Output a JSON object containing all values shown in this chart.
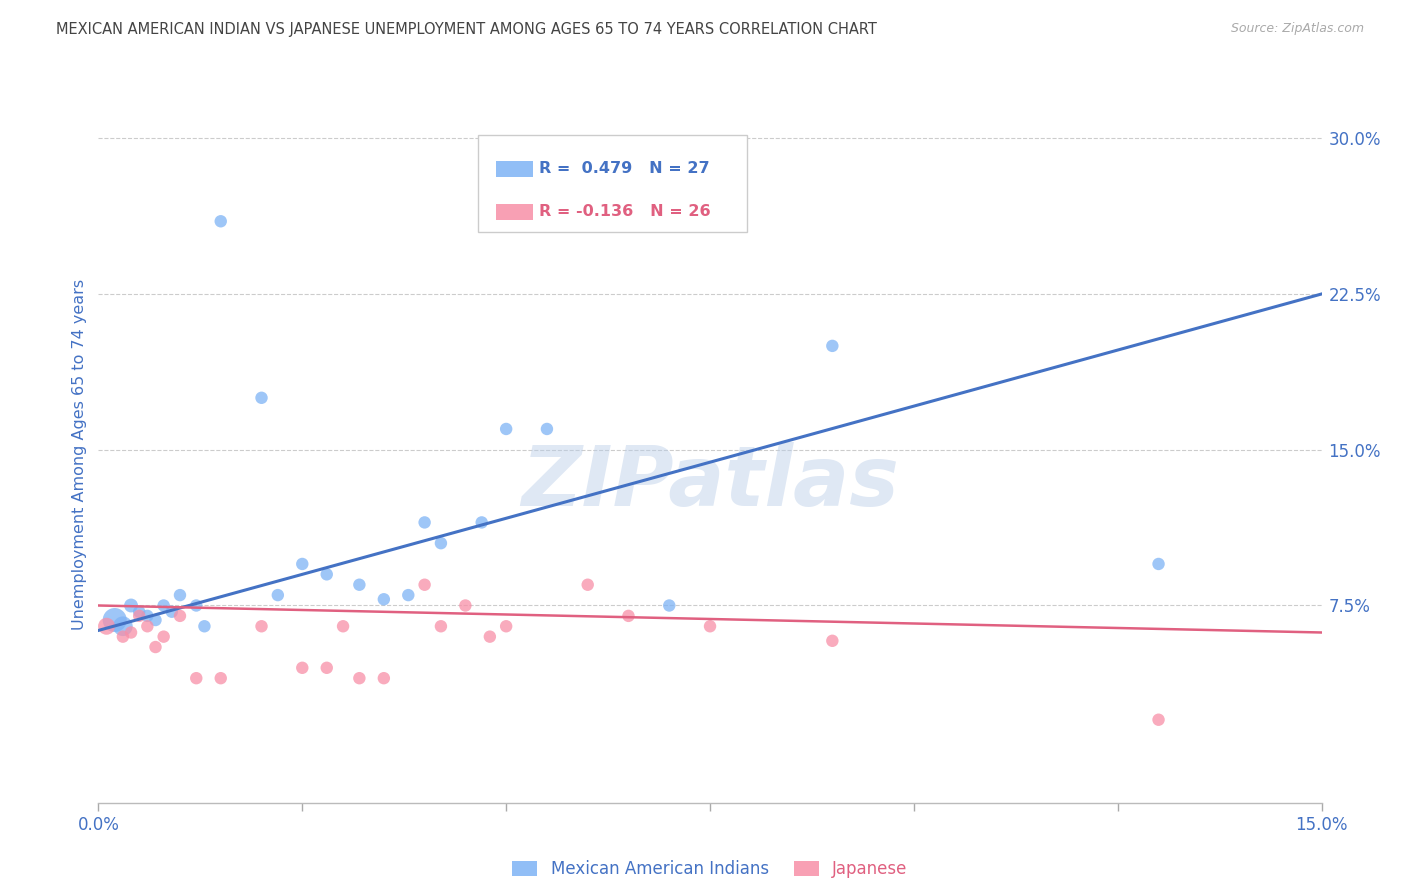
{
  "title": "MEXICAN AMERICAN INDIAN VS JAPANESE UNEMPLOYMENT AMONG AGES 65 TO 74 YEARS CORRELATION CHART",
  "source": "Source: ZipAtlas.com",
  "ylabel": "Unemployment Among Ages 65 to 74 years",
  "x_min": 0.0,
  "x_max": 0.15,
  "y_min": -0.02,
  "y_max": 0.315,
  "x_ticks": [
    0.0,
    0.025,
    0.05,
    0.075,
    0.1,
    0.125,
    0.15
  ],
  "y_tick_positions": [
    0.075,
    0.15,
    0.225,
    0.3
  ],
  "y_tick_labels": [
    "7.5%",
    "15.0%",
    "22.5%",
    "30.0%"
  ],
  "blue_color": "#7EB3F5",
  "pink_color": "#F78FA7",
  "blue_line_color": "#4472C4",
  "pink_line_color": "#E06080",
  "blue_scatter_x": [
    0.002,
    0.003,
    0.004,
    0.005,
    0.006,
    0.007,
    0.008,
    0.009,
    0.01,
    0.012,
    0.013,
    0.015,
    0.02,
    0.022,
    0.025,
    0.028,
    0.032,
    0.035,
    0.038,
    0.04,
    0.042,
    0.047,
    0.05,
    0.055,
    0.07,
    0.09,
    0.13
  ],
  "blue_scatter_y": [
    0.068,
    0.065,
    0.075,
    0.072,
    0.07,
    0.068,
    0.075,
    0.072,
    0.08,
    0.075,
    0.065,
    0.26,
    0.175,
    0.08,
    0.095,
    0.09,
    0.085,
    0.078,
    0.08,
    0.115,
    0.105,
    0.115,
    0.16,
    0.16,
    0.075,
    0.2,
    0.095
  ],
  "blue_scatter_sizes": [
    300,
    200,
    100,
    80,
    80,
    80,
    80,
    80,
    80,
    80,
    80,
    80,
    80,
    80,
    80,
    80,
    80,
    80,
    80,
    80,
    80,
    80,
    80,
    80,
    80,
    80,
    80
  ],
  "pink_scatter_x": [
    0.001,
    0.003,
    0.004,
    0.005,
    0.006,
    0.007,
    0.008,
    0.01,
    0.012,
    0.015,
    0.02,
    0.025,
    0.028,
    0.03,
    0.032,
    0.035,
    0.04,
    0.042,
    0.045,
    0.048,
    0.05,
    0.06,
    0.065,
    0.075,
    0.09,
    0.13
  ],
  "pink_scatter_y": [
    0.065,
    0.06,
    0.062,
    0.07,
    0.065,
    0.055,
    0.06,
    0.07,
    0.04,
    0.04,
    0.065,
    0.045,
    0.045,
    0.065,
    0.04,
    0.04,
    0.085,
    0.065,
    0.075,
    0.06,
    0.065,
    0.085,
    0.07,
    0.065,
    0.058,
    0.02
  ],
  "pink_scatter_sizes": [
    150,
    80,
    80,
    80,
    80,
    80,
    80,
    80,
    80,
    80,
    80,
    80,
    80,
    80,
    80,
    80,
    80,
    80,
    80,
    80,
    80,
    80,
    80,
    80,
    80,
    80
  ],
  "blue_trend_x": [
    0.0,
    0.15
  ],
  "blue_trend_y": [
    0.063,
    0.225
  ],
  "pink_trend_x": [
    0.0,
    0.15
  ],
  "pink_trend_y": [
    0.075,
    0.062
  ],
  "legend_label1": "Mexican American Indians",
  "legend_label2": "Japanese",
  "background_color": "#FFFFFF",
  "grid_color": "#CCCCCC",
  "title_color": "#444444",
  "axis_label_color": "#4472C4",
  "tick_label_color": "#4472C4"
}
